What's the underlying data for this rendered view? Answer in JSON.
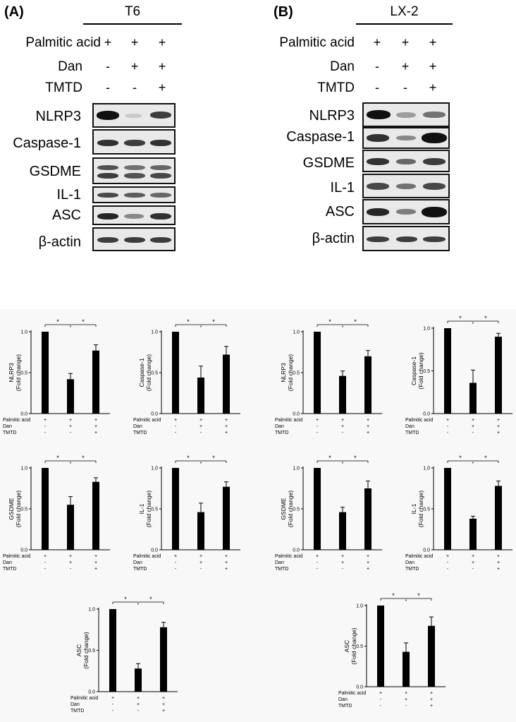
{
  "panels": [
    {
      "letter": "(A)",
      "cell_line": "T6",
      "treatments": [
        {
          "label": "Palmitic acid",
          "signs": [
            "+",
            "+",
            "+"
          ]
        },
        {
          "label": "Dan",
          "signs": [
            "-",
            "+",
            "+"
          ]
        },
        {
          "label": "TMTD",
          "signs": [
            "-",
            "-",
            "+"
          ]
        }
      ],
      "blots": [
        "NLRP3",
        "Caspase-1",
        "GSDME",
        "IL-1",
        "ASC",
        "β-actin"
      ]
    },
    {
      "letter": "(B)",
      "cell_line": "LX-2",
      "treatments": [
        {
          "label": "Palmitic acid",
          "signs": [
            "+",
            "+",
            "+"
          ]
        },
        {
          "label": "Dan",
          "signs": [
            "-",
            "+",
            "+"
          ]
        },
        {
          "label": "TMTD",
          "signs": [
            "-",
            "-",
            "+"
          ]
        }
      ],
      "blots": [
        "NLRP3",
        "Caspase-1",
        "GSDME",
        "IL-1",
        "ASC",
        "β-actin"
      ]
    }
  ],
  "chart_common": {
    "y_ticks": [
      "0.0",
      "0.5",
      "1.0"
    ],
    "y_unit": "(Fold change)",
    "x_rows": [
      {
        "label": "Palmitic acid",
        "signs": [
          "+",
          "+",
          "+"
        ]
      },
      {
        "label": "Dan",
        "signs": [
          "-",
          "+",
          "+"
        ]
      },
      {
        "label": "TMTD",
        "signs": [
          "-",
          "-",
          "+"
        ]
      }
    ],
    "sig_mark": "*",
    "bar_color": "#000000"
  },
  "chart_data": [
    {
      "type": "bar",
      "panel": "A",
      "ylabel": "NLRP3",
      "ylim": [
        0,
        1
      ],
      "values": [
        1.0,
        0.42,
        0.77
      ],
      "errors": [
        0,
        0.07,
        0.07
      ],
      "significance": [
        "*",
        "*",
        "*"
      ]
    },
    {
      "type": "bar",
      "panel": "A",
      "ylabel": "Caspase-1",
      "ylim": [
        0,
        1
      ],
      "values": [
        1.0,
        0.44,
        0.72
      ],
      "errors": [
        0,
        0.14,
        0.1
      ],
      "significance": [
        "*",
        "*",
        "*"
      ]
    },
    {
      "type": "bar",
      "panel": "A",
      "ylabel": "GSDME",
      "ylim": [
        0,
        1
      ],
      "values": [
        1.0,
        0.55,
        0.83
      ],
      "errors": [
        0,
        0.1,
        0.05
      ],
      "significance": [
        "*",
        "*",
        "*"
      ]
    },
    {
      "type": "bar",
      "panel": "A",
      "ylabel": "IL-1",
      "ylim": [
        0,
        1
      ],
      "values": [
        1.0,
        0.46,
        0.77
      ],
      "errors": [
        0,
        0.11,
        0.06
      ],
      "significance": [
        "*",
        "*",
        "*"
      ]
    },
    {
      "type": "bar",
      "panel": "A",
      "ylabel": "ASC",
      "ylim": [
        0,
        1
      ],
      "values": [
        1.0,
        0.28,
        0.78
      ],
      "errors": [
        0,
        0.06,
        0.06
      ],
      "significance": [
        "*",
        "*",
        "*"
      ]
    },
    {
      "type": "bar",
      "panel": "B",
      "ylabel": "NLRP3",
      "ylim": [
        0,
        1
      ],
      "values": [
        1.0,
        0.46,
        0.7
      ],
      "errors": [
        0,
        0.06,
        0.07
      ],
      "significance": [
        "*",
        "*",
        "*"
      ]
    },
    {
      "type": "bar",
      "panel": "B",
      "ylabel": "Caspase-1",
      "ylim": [
        0,
        1
      ],
      "values": [
        1.0,
        0.36,
        0.9
      ],
      "errors": [
        0,
        0.15,
        0.04
      ],
      "significance": [
        "*",
        "*",
        "*"
      ]
    },
    {
      "type": "bar",
      "panel": "B",
      "ylabel": "GSDME",
      "ylim": [
        0,
        1
      ],
      "values": [
        1.0,
        0.46,
        0.75
      ],
      "errors": [
        0,
        0.06,
        0.09
      ],
      "significance": [
        "*",
        "*",
        "*"
      ]
    },
    {
      "type": "bar",
      "panel": "B",
      "ylabel": "IL-1",
      "ylim": [
        0,
        1
      ],
      "values": [
        1.0,
        0.38,
        0.78
      ],
      "errors": [
        0,
        0.03,
        0.06
      ],
      "significance": [
        "*",
        "*",
        "*"
      ]
    },
    {
      "type": "bar",
      "panel": "B",
      "ylabel": "ASC",
      "ylim": [
        0,
        1
      ],
      "values": [
        1.0,
        0.43,
        0.75
      ],
      "errors": [
        0,
        0.11,
        0.11
      ],
      "significance": [
        "*",
        "*",
        "*"
      ]
    }
  ]
}
